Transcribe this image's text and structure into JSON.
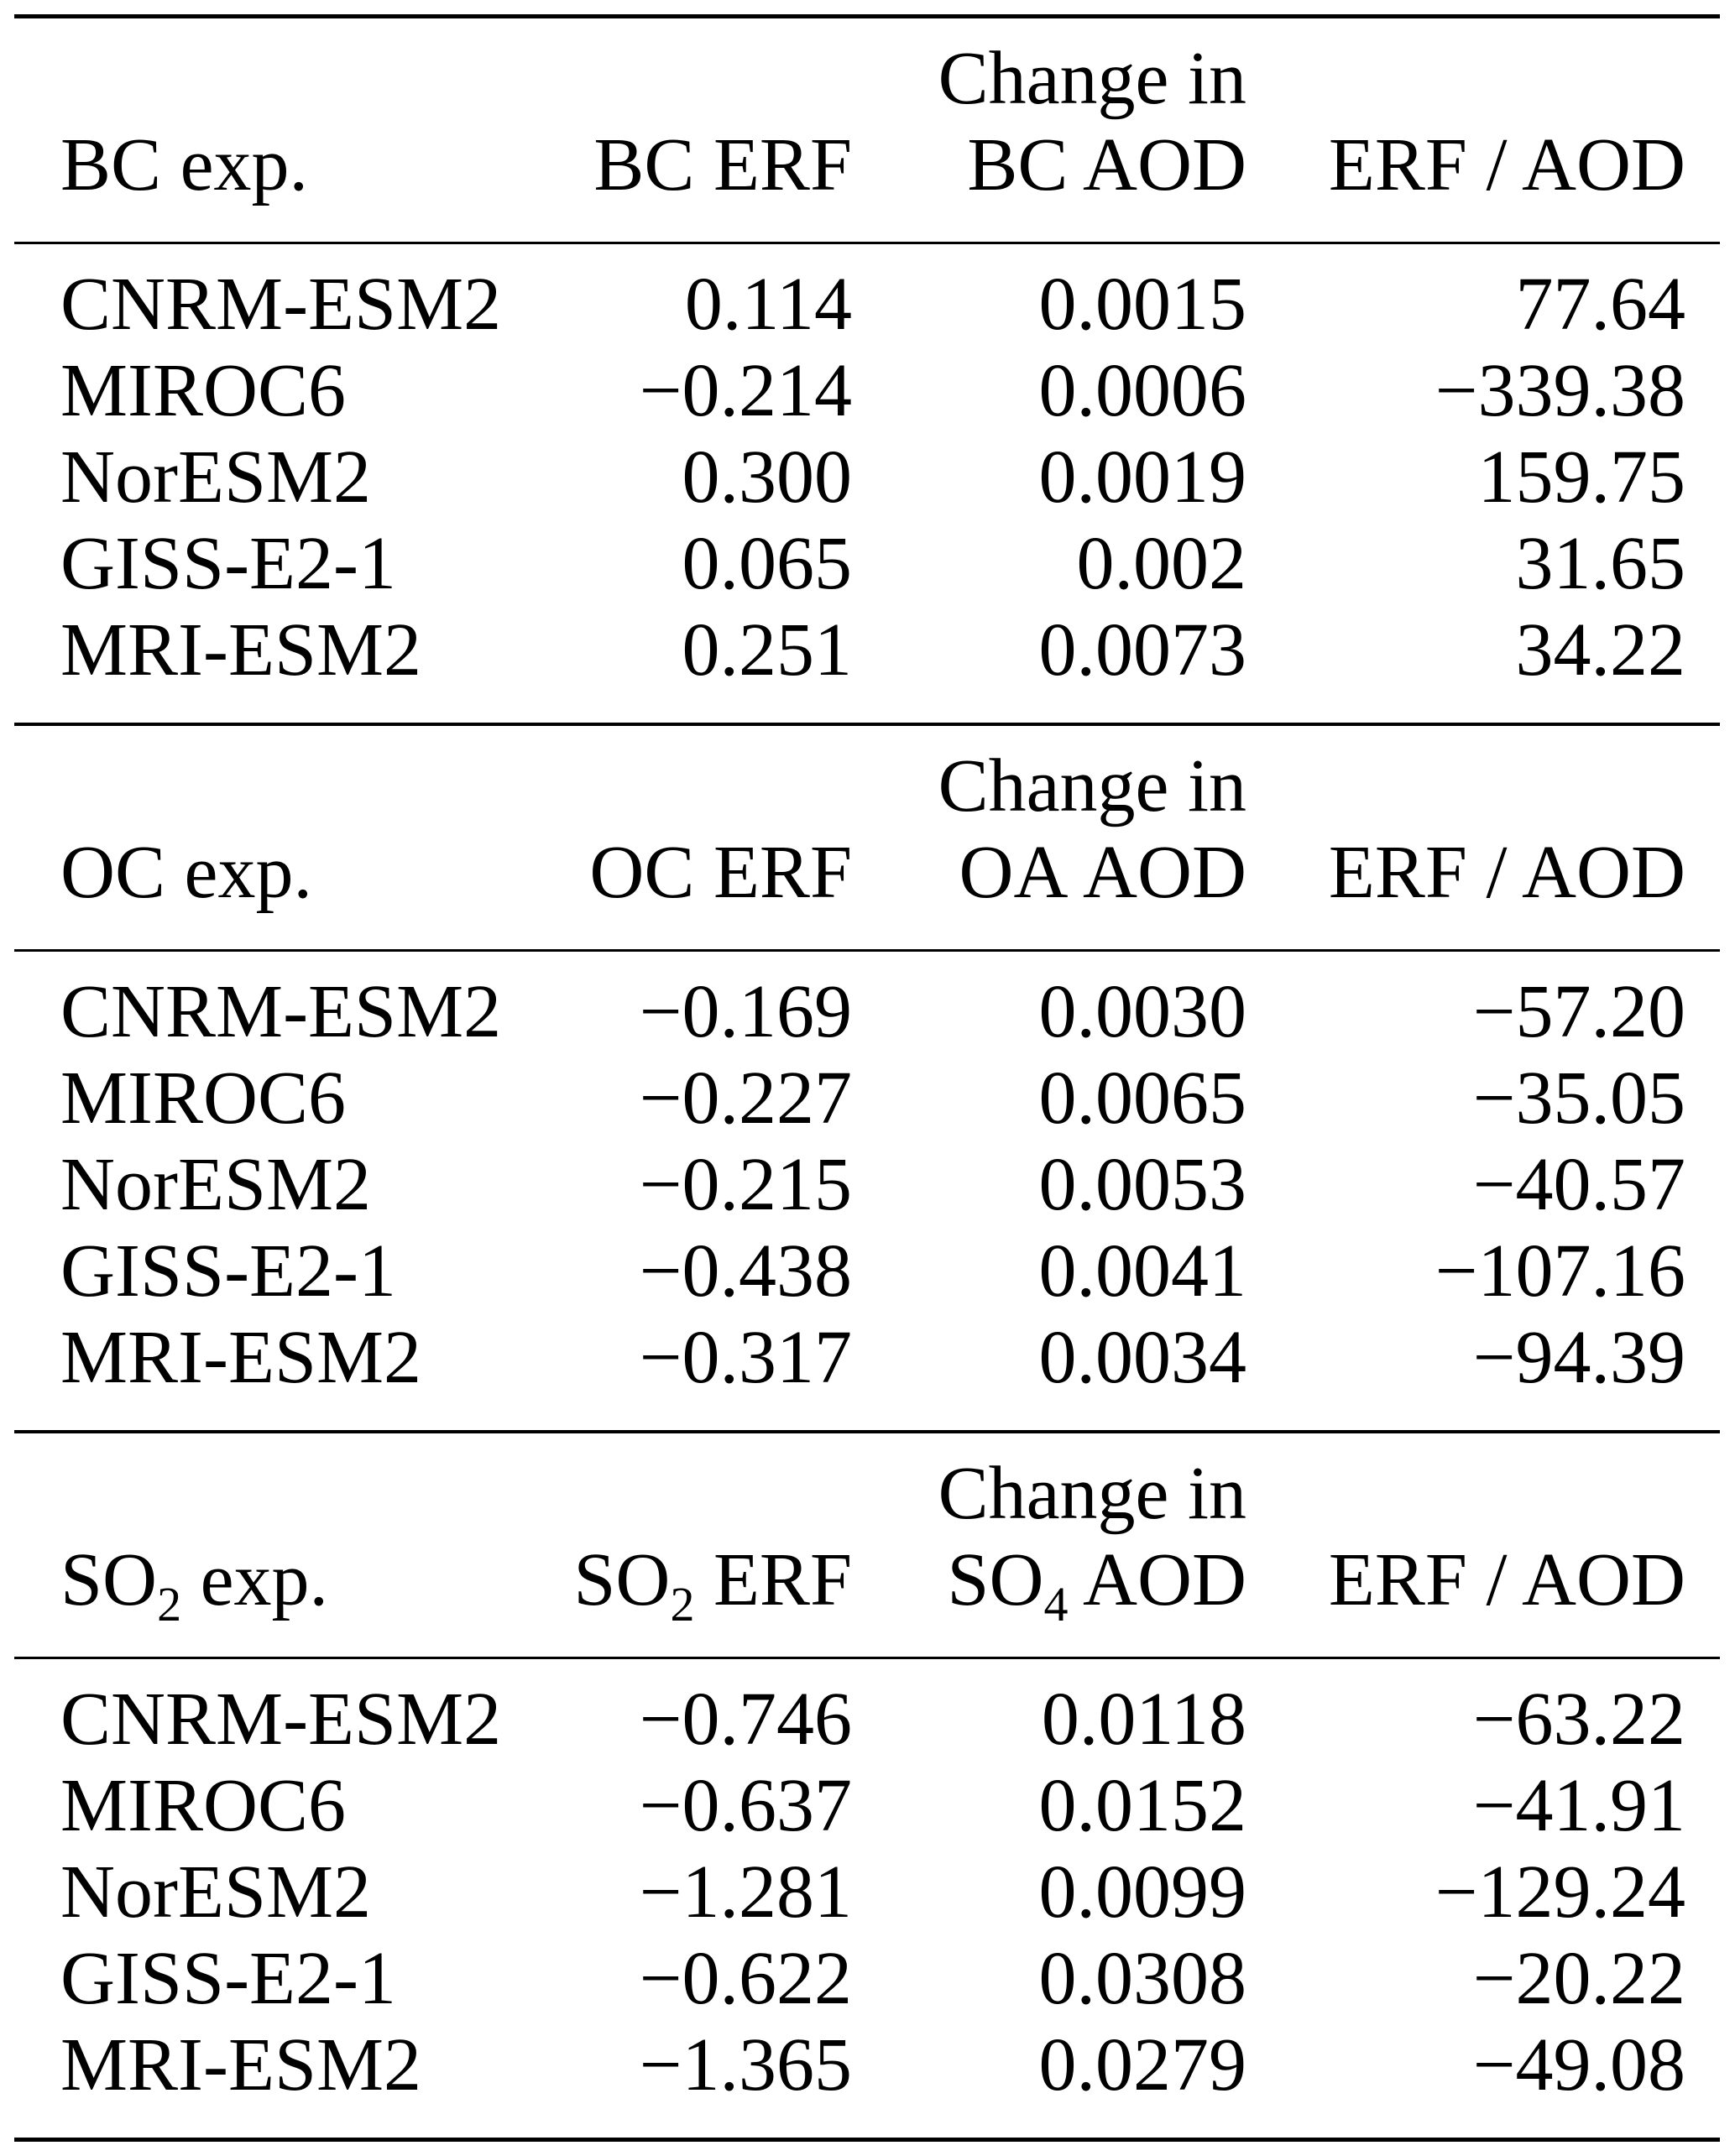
{
  "page": {
    "background_color": "#ffffff",
    "text_color": "#000000",
    "description": "Three stacked journal-style tables of aerosol experiment results per climate model"
  },
  "tables": [
    {
      "id": "bc",
      "header": {
        "exp": {
          "pre": "BC",
          "sub": "",
          "post": " exp."
        },
        "erf": {
          "pre": "BC",
          "sub": "",
          "post": " ERF"
        },
        "change_line": "Change in",
        "aod": {
          "pre": "BC",
          "sub": "",
          "post": " AOD"
        },
        "ratio": "ERF / AOD"
      },
      "rows": [
        {
          "model": "CNRM-ESM2",
          "erf": "0.114",
          "aod": "0.0015",
          "ratio": "77.64"
        },
        {
          "model": "MIROC6",
          "erf": "−0.214",
          "aod": "0.0006",
          "ratio": "−339.38"
        },
        {
          "model": "NorESM2",
          "erf": "0.300",
          "aod": "0.0019",
          "ratio": "159.75"
        },
        {
          "model": "GISS-E2-1",
          "erf": "0.065",
          "aod": "0.002",
          "ratio": "31.65"
        },
        {
          "model": "MRI-ESM2",
          "erf": "0.251",
          "aod": "0.0073",
          "ratio": "34.22"
        }
      ]
    },
    {
      "id": "oc",
      "header": {
        "exp": {
          "pre": "OC",
          "sub": "",
          "post": " exp."
        },
        "erf": {
          "pre": "OC",
          "sub": "",
          "post": " ERF"
        },
        "change_line": "Change in",
        "aod": {
          "pre": "OA",
          "sub": "",
          "post": " AOD"
        },
        "ratio": "ERF / AOD"
      },
      "rows": [
        {
          "model": "CNRM-ESM2",
          "erf": "−0.169",
          "aod": "0.0030",
          "ratio": "−57.20"
        },
        {
          "model": "MIROC6",
          "erf": "−0.227",
          "aod": "0.0065",
          "ratio": "−35.05"
        },
        {
          "model": "NorESM2",
          "erf": "−0.215",
          "aod": "0.0053",
          "ratio": "−40.57"
        },
        {
          "model": "GISS-E2-1",
          "erf": "−0.438",
          "aod": "0.0041",
          "ratio": "−107.16"
        },
        {
          "model": "MRI-ESM2",
          "erf": "−0.317",
          "aod": "0.0034",
          "ratio": "−94.39"
        }
      ]
    },
    {
      "id": "so2",
      "header": {
        "exp": {
          "pre": "SO",
          "sub": "2",
          "post": " exp."
        },
        "erf": {
          "pre": "SO",
          "sub": "2",
          "post": " ERF"
        },
        "change_line": "Change in",
        "aod": {
          "pre": "SO",
          "sub": "4",
          "post": " AOD"
        },
        "ratio": "ERF / AOD"
      },
      "rows": [
        {
          "model": "CNRM-ESM2",
          "erf": "−0.746",
          "aod": "0.0118",
          "ratio": "−63.22"
        },
        {
          "model": "MIROC6",
          "erf": "−0.637",
          "aod": "0.0152",
          "ratio": "−41.91"
        },
        {
          "model": "NorESM2",
          "erf": "−1.281",
          "aod": "0.0099",
          "ratio": "−129.24"
        },
        {
          "model": "GISS-E2-1",
          "erf": "−0.622",
          "aod": "0.0308",
          "ratio": "−20.22"
        },
        {
          "model": "MRI-ESM2",
          "erf": "−1.365",
          "aod": "0.0279",
          "ratio": "−49.08"
        }
      ]
    }
  ]
}
